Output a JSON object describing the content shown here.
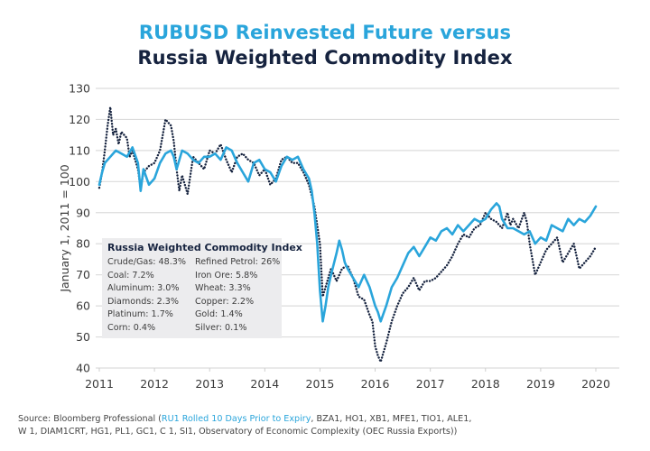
{
  "chart_data": {
    "type": "line",
    "title": "RUBUSD Reinvested Future versus",
    "subtitle": "Russia Weighted Commodity Index",
    "xlabel": "",
    "ylabel": "January 1, 2011 = 100",
    "xlim": [
      2011,
      2020
    ],
    "ylim": [
      40,
      130
    ],
    "x_ticks": [
      "2011",
      "2012",
      "2013",
      "2014",
      "2015",
      "2016",
      "2017",
      "2018",
      "2019",
      "2020"
    ],
    "y_ticks": [
      "130",
      "120",
      "110",
      "100",
      "90",
      "80",
      "70",
      "60",
      "50",
      "40"
    ],
    "grid": true,
    "series": [
      {
        "name": "RUBUSD Reinvested Future",
        "color": "#2aa5db",
        "style": "solid",
        "x": [
          2011.0,
          2011.05,
          2011.1,
          2011.2,
          2011.3,
          2011.4,
          2011.5,
          2011.6,
          2011.7,
          2011.75,
          2011.8,
          2011.9,
          2012.0,
          2012.1,
          2012.2,
          2012.3,
          2012.35,
          2012.4,
          2012.5,
          2012.6,
          2012.7,
          2012.8,
          2012.9,
          2013.0,
          2013.1,
          2013.2,
          2013.3,
          2013.4,
          2013.5,
          2013.6,
          2013.7,
          2013.8,
          2013.9,
          2014.0,
          2014.1,
          2014.2,
          2014.3,
          2014.4,
          2014.5,
          2014.6,
          2014.7,
          2014.8,
          2014.85,
          2014.9,
          2014.95,
          2015.0,
          2015.05,
          2015.1,
          2015.15,
          2015.2,
          2015.3,
          2015.35,
          2015.4,
          2015.45,
          2015.5,
          2015.6,
          2015.7,
          2015.8,
          2015.9,
          2016.0,
          2016.05,
          2016.1,
          2016.2,
          2016.3,
          2016.4,
          2016.5,
          2016.6,
          2016.7,
          2016.8,
          2016.9,
          2017.0,
          2017.1,
          2017.2,
          2017.3,
          2017.4,
          2017.5,
          2017.6,
          2017.7,
          2017.8,
          2017.9,
          2018.0,
          2018.1,
          2018.2,
          2018.25,
          2018.3,
          2018.4,
          2018.5,
          2018.6,
          2018.7,
          2018.8,
          2018.9,
          2019.0,
          2019.1,
          2019.2,
          2019.3,
          2019.4,
          2019.5,
          2019.6,
          2019.7,
          2019.8,
          2019.9,
          2020.0
        ],
        "y": [
          99,
          103,
          106,
          108,
          110,
          109,
          108,
          111,
          106,
          97,
          104,
          99,
          101,
          106,
          109,
          110,
          108,
          104,
          110,
          109,
          107,
          106,
          108,
          108,
          109,
          107,
          111,
          110,
          106,
          103,
          100,
          106,
          107,
          104,
          103,
          100,
          105,
          108,
          107,
          108,
          104,
          101,
          97,
          90,
          80,
          65,
          55,
          60,
          66,
          70,
          77,
          81,
          78,
          74,
          72,
          69,
          66,
          70,
          66,
          60,
          58,
          55,
          60,
          66,
          69,
          73,
          77,
          79,
          76,
          79,
          82,
          81,
          84,
          85,
          83,
          86,
          84,
          86,
          88,
          87,
          88,
          91,
          93,
          92,
          88,
          85,
          85,
          84,
          83,
          84,
          80,
          82,
          81,
          86,
          85,
          84,
          88,
          86,
          88,
          87,
          89,
          92
        ]
      },
      {
        "name": "Russia Weighted Commodity Index",
        "color": "#16233f",
        "style": "dotted",
        "x": [
          2011.0,
          2011.05,
          2011.1,
          2011.15,
          2011.2,
          2011.25,
          2011.3,
          2011.35,
          2011.4,
          2011.5,
          2011.55,
          2011.6,
          2011.7,
          2011.75,
          2011.8,
          2011.9,
          2012.0,
          2012.1,
          2012.15,
          2012.2,
          2012.3,
          2012.35,
          2012.4,
          2012.45,
          2012.5,
          2012.6,
          2012.7,
          2012.8,
          2012.9,
          2013.0,
          2013.1,
          2013.2,
          2013.3,
          2013.4,
          2013.5,
          2013.6,
          2013.7,
          2013.8,
          2013.9,
          2014.0,
          2014.1,
          2014.2,
          2014.3,
          2014.4,
          2014.5,
          2014.6,
          2014.7,
          2014.8,
          2014.9,
          2015.0,
          2015.05,
          2015.1,
          2015.2,
          2015.3,
          2015.4,
          2015.5,
          2015.6,
          2015.7,
          2015.8,
          2015.9,
          2015.95,
          2016.0,
          2016.05,
          2016.1,
          2016.2,
          2016.3,
          2016.4,
          2016.5,
          2016.6,
          2016.7,
          2016.8,
          2016.9,
          2017.0,
          2017.1,
          2017.2,
          2017.3,
          2017.4,
          2017.5,
          2017.6,
          2017.7,
          2017.8,
          2017.9,
          2018.0,
          2018.1,
          2018.2,
          2018.3,
          2018.4,
          2018.45,
          2018.5,
          2018.6,
          2018.7,
          2018.75,
          2018.8,
          2018.9,
          2019.0,
          2019.1,
          2019.2,
          2019.3,
          2019.4,
          2019.5,
          2019.6,
          2019.7,
          2019.8,
          2019.9,
          2020.0
        ],
        "y": [
          98,
          103,
          110,
          118,
          124,
          115,
          117,
          112,
          116,
          114,
          108,
          110,
          104,
          98,
          103,
          105,
          106,
          110,
          115,
          120,
          118,
          113,
          104,
          97,
          102,
          96,
          108,
          106,
          104,
          110,
          109,
          112,
          107,
          103,
          108,
          109,
          107,
          106,
          102,
          104,
          99,
          101,
          107,
          108,
          106,
          106,
          103,
          99,
          92,
          80,
          63,
          66,
          72,
          68,
          72,
          73,
          69,
          63,
          62,
          57,
          55,
          47,
          44,
          42,
          48,
          55,
          60,
          64,
          66,
          69,
          65,
          68,
          68,
          69,
          71,
          73,
          76,
          80,
          83,
          82,
          85,
          86,
          90,
          88,
          87,
          85,
          90,
          86,
          88,
          85,
          90,
          87,
          80,
          70,
          74,
          78,
          80,
          82,
          74,
          77,
          80,
          72,
          74,
          76,
          79
        ]
      }
    ],
    "annotation": {
      "title": "Russia Weighted Commodity Index",
      "items": [
        [
          "Crude/Gas: 48.3%",
          "Refined Petrol: 26%"
        ],
        [
          "Coal: 7.2%",
          "Iron Ore: 5.8%"
        ],
        [
          "Aluminum: 3.0%",
          "Wheat: 3.3%"
        ],
        [
          "Diamonds: 2.3%",
          "Copper: 2.2%"
        ],
        [
          "Platinum: 1.7%",
          "Gold: 1.4%"
        ],
        [
          "Corn: 0.4%",
          "Silver: 0.1%"
        ]
      ]
    }
  },
  "source": {
    "prefix": "Source: Bloomberg Professional (",
    "highlight": "RU1 Rolled 10 Days Prior to Expiry",
    "line1_rest": ", BZA1, HO1, XB1, MFE1, TIO1, ALE1,",
    "line2": "W 1, DIAM1CRT, HG1, PL1, GC1, C 1, SI1, Observatory of Economic Complexity (OEC Russia Exports))"
  }
}
